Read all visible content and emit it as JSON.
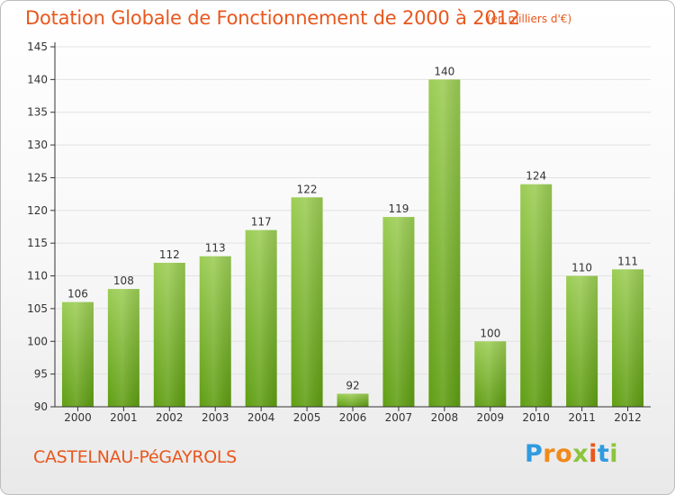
{
  "title": "Dotation Globale de Fonctionnement de 2000 à 2012",
  "subtitle": "(en milliers d'€)",
  "commune": "CASTELNAU-PéGAYROLS",
  "logo": {
    "text": "Proxiti",
    "letters": [
      {
        "char": "P",
        "color": "#2f9be0"
      },
      {
        "char": "r",
        "color": "#f08a1c"
      },
      {
        "char": "o",
        "color": "#f08a1c"
      },
      {
        "char": "x",
        "color": "#8cc43c"
      },
      {
        "char": "i",
        "color": "#e8571d"
      },
      {
        "char": "t",
        "color": "#2f9be0"
      },
      {
        "char": "i",
        "color": "#8cc43c"
      }
    ]
  },
  "colors": {
    "title": "#e8571d",
    "bar_top": "#9ccd55",
    "bar_bottom": "#5f9e12",
    "axis": "#333333",
    "grid": "#e2e2e2"
  },
  "chart_data": {
    "type": "bar",
    "title": "Dotation Globale de Fonctionnement de 2000 à 2012",
    "subtitle": "(en milliers d'€)",
    "categories": [
      "2000",
      "2001",
      "2002",
      "2003",
      "2004",
      "2005",
      "2006",
      "2007",
      "2008",
      "2009",
      "2010",
      "2011",
      "2012"
    ],
    "values": [
      106,
      108,
      112,
      113,
      117,
      122,
      92,
      119,
      140,
      100,
      124,
      110,
      111
    ],
    "value_labels": [
      "106",
      "108",
      "112",
      "113",
      "117",
      "122",
      "92",
      "119",
      "140",
      "100",
      "124",
      "110",
      "111"
    ],
    "ylim": [
      90,
      145
    ],
    "yticks": [
      90,
      95,
      100,
      105,
      110,
      115,
      120,
      125,
      130,
      135,
      140,
      145
    ],
    "ytick_labels": [
      "90",
      "95",
      "100",
      "105",
      "110",
      "115",
      "120",
      "125",
      "130",
      "135",
      "140",
      "145"
    ],
    "grid": true,
    "xlabel": "",
    "ylabel": ""
  }
}
